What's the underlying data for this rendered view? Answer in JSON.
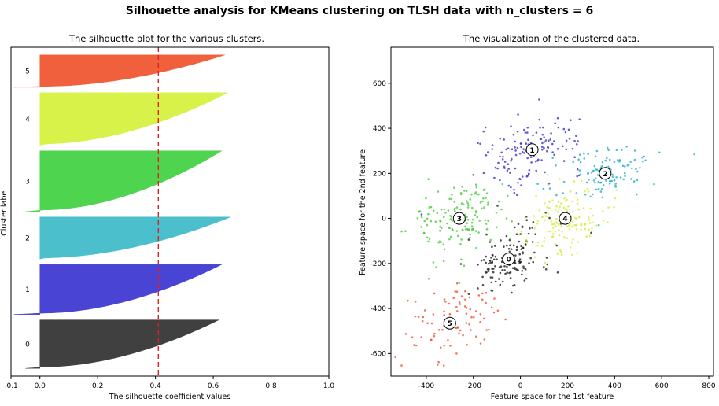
{
  "suptitle": "Silhouette analysis for KMeans clustering on TLSH data with n_clusters = 6",
  "chart_data": [
    {
      "type": "area",
      "title": "The silhouette plot for the various clusters.",
      "xlabel": "The silhouette coefficient values",
      "ylabel": "Cluster label",
      "xlim": [
        -0.1,
        1.0
      ],
      "xticks": [
        -0.1,
        0.0,
        0.2,
        0.4,
        0.6,
        0.8,
        1.0
      ],
      "xtick_labels": [
        "-0.1",
        "0.0",
        "0.2",
        "0.4",
        "0.6",
        "0.8",
        "1.0"
      ],
      "average_silhouette": 0.41,
      "clusters": [
        {
          "label": "0",
          "color": "#404040",
          "size": 90,
          "min": -0.05,
          "max": 0.62
        },
        {
          "label": "1",
          "color": "#4a44d4",
          "size": 93,
          "min": -0.09,
          "max": 0.63
        },
        {
          "label": "2",
          "color": "#4bbfcc",
          "size": 78,
          "min": 0.0,
          "max": 0.66
        },
        {
          "label": "3",
          "color": "#4fd44f",
          "size": 113,
          "min": -0.05,
          "max": 0.63
        },
        {
          "label": "4",
          "color": "#d8f24a",
          "size": 98,
          "min": 0.0,
          "max": 0.65
        },
        {
          "label": "5",
          "color": "#f0603c",
          "size": 60,
          "min": -0.09,
          "max": 0.64
        }
      ],
      "grid": false
    },
    {
      "type": "scatter",
      "title": "The visualization of the clustered data.",
      "xlabel": "Feature space for the 1st feature",
      "ylabel": "Feature space for the 2nd feature",
      "xlim": [
        -550,
        820
      ],
      "ylim": [
        -700,
        760
      ],
      "xticks": [
        -400,
        -200,
        0,
        200,
        400,
        600,
        800
      ],
      "yticks": [
        -600,
        -400,
        -200,
        0,
        200,
        400,
        600
      ],
      "grid": false,
      "clusters": [
        {
          "label": "0",
          "color": "#222222",
          "center": [
            -50,
            -180
          ],
          "spread": [
            90,
            75
          ],
          "count": 150
        },
        {
          "label": "1",
          "color": "#3a35c8",
          "center": [
            50,
            305
          ],
          "spread": [
            110,
            70
          ],
          "count": 140
        },
        {
          "label": "2",
          "color": "#2ab0c8",
          "center": [
            360,
            200
          ],
          "spread": [
            120,
            55
          ],
          "count": 110
        },
        {
          "label": "3",
          "color": "#4ccc3c",
          "center": [
            -260,
            0
          ],
          "spread": [
            100,
            90
          ],
          "count": 150
        },
        {
          "label": "4",
          "color": "#d4ee40",
          "center": [
            190,
            0
          ],
          "spread": [
            80,
            75
          ],
          "count": 140
        },
        {
          "label": "5",
          "color": "#ee5530",
          "center": [
            -300,
            -465
          ],
          "spread": [
            95,
            85
          ],
          "count": 90
        }
      ]
    }
  ]
}
